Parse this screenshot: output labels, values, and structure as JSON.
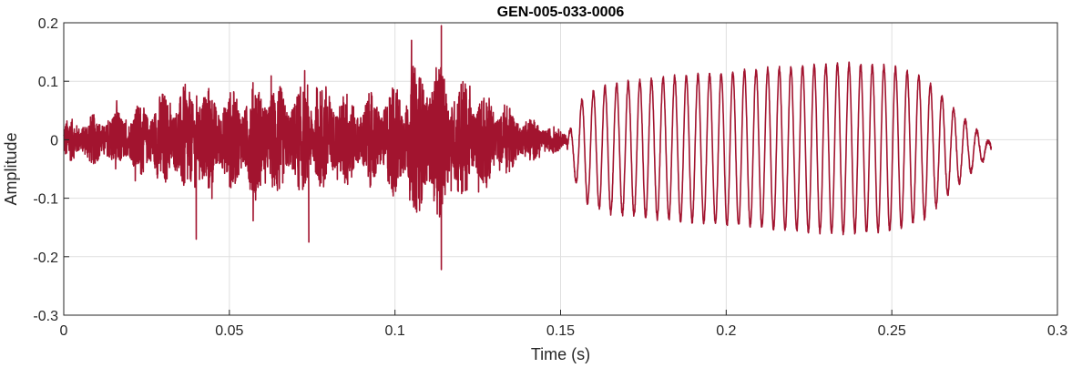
{
  "chart_data": {
    "type": "line",
    "title": "GEN-005-033-0006",
    "xlabel": "Time (s)",
    "ylabel": "Amplitude",
    "xlim": [
      0,
      0.3
    ],
    "ylim": [
      -0.3,
      0.2
    ],
    "xticks": [
      0,
      0.05,
      0.1,
      0.15,
      0.2,
      0.25,
      0.3
    ],
    "xtick_labels": [
      "0",
      "0.05",
      "0.1",
      "0.15",
      "0.2",
      "0.25",
      "0.3"
    ],
    "yticks": [
      -0.3,
      -0.2,
      -0.1,
      0,
      0.1,
      0.2
    ],
    "ytick_labels": [
      "-0.3",
      "-0.2",
      "-0.1",
      "0",
      "0.1",
      "0.2"
    ],
    "grid": true,
    "line_color": "#a2142f",
    "series": [
      {
        "name": "",
        "segments": [
          {
            "kind": "noise",
            "t_start": 0.0,
            "t_end": 0.152,
            "envelope": [
              [
                0.0,
                0.035
              ],
              [
                0.01,
                0.045
              ],
              [
                0.02,
                0.055
              ],
              [
                0.03,
                0.085
              ],
              [
                0.04,
                0.1
              ],
              [
                0.05,
                0.085
              ],
              [
                0.06,
                0.11
              ],
              [
                0.07,
                0.09
              ],
              [
                0.08,
                0.1
              ],
              [
                0.09,
                0.075
              ],
              [
                0.1,
                0.1
              ],
              [
                0.11,
                0.145
              ],
              [
                0.12,
                0.11
              ],
              [
                0.13,
                0.075
              ],
              [
                0.14,
                0.04
              ],
              [
                0.152,
                0.015
              ]
            ]
          },
          {
            "kind": "oscillation",
            "t_start": 0.152,
            "t_end": 0.28,
            "freq_hz": 285,
            "envelope": [
              [
                0.152,
                0.02
              ],
              [
                0.157,
                0.09
              ],
              [
                0.165,
                0.11
              ],
              [
                0.18,
                0.12
              ],
              [
                0.2,
                0.13
              ],
              [
                0.22,
                0.14
              ],
              [
                0.235,
                0.145
              ],
              [
                0.25,
                0.14
              ],
              [
                0.26,
                0.12
              ],
              [
                0.27,
                0.06
              ],
              [
                0.28,
                0.008
              ]
            ]
          }
        ],
        "peaks": [
          {
            "t": 0.114,
            "value": 0.195
          },
          {
            "t": 0.114,
            "value": -0.222
          },
          {
            "t": 0.105,
            "value": 0.17
          },
          {
            "t": 0.04,
            "value": -0.17
          },
          {
            "t": 0.074,
            "value": -0.175
          }
        ]
      }
    ]
  }
}
